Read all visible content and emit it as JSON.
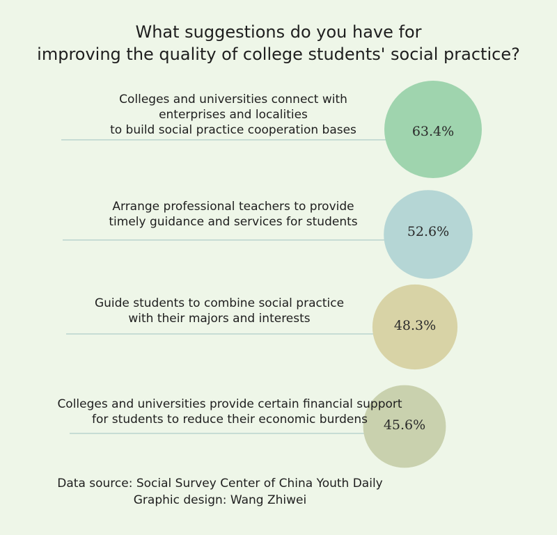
{
  "chart_data": {
    "type": "bubble",
    "title": [
      "What suggestions do you have for",
      "improving the quality of college students' social practice?"
    ],
    "unit": "%",
    "items": [
      {
        "label": [
          "Colleges and universities connect with",
          "enterprises and localities",
          "to build social practice cooperation bases"
        ],
        "value": 63.4,
        "value_label": "63.4%",
        "color": "#9fd4ae"
      },
      {
        "label": [
          "Arrange professional teachers to provide",
          "timely guidance and services for students"
        ],
        "value": 52.6,
        "value_label": "52.6%",
        "color": "#b5d6d5"
      },
      {
        "label": [
          "Guide students to combine social practice",
          "with their majors and interests"
        ],
        "value": 48.3,
        "value_label": "48.3%",
        "color": "#d8d3a6"
      },
      {
        "label": [
          "Colleges and universities provide certain financial support",
          "for students to reduce their economic burdens"
        ],
        "value": 45.6,
        "value_label": "45.6%",
        "color": "#c9d1ae"
      }
    ]
  },
  "footer": {
    "source": "Data source: Social Survey Center of China Youth Daily",
    "design": "Graphic design: Wang Zhiwei"
  }
}
